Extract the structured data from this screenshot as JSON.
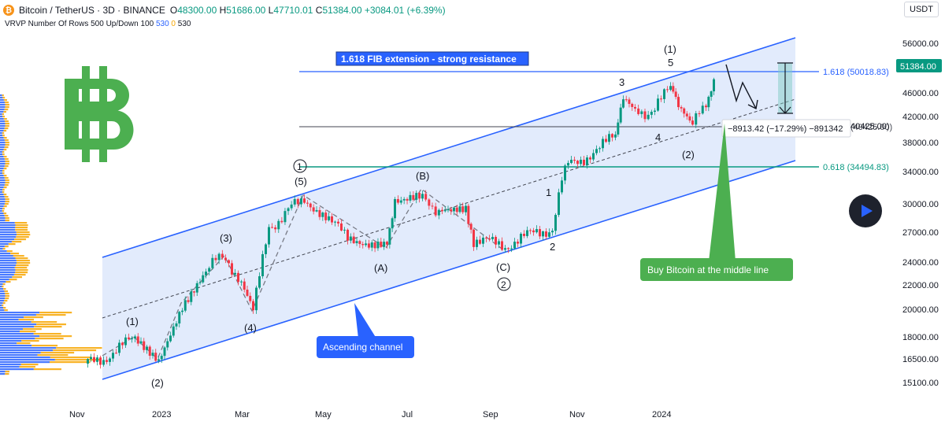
{
  "header": {
    "symbol": "Bitcoin / TetherUS · 3D · BINANCE",
    "logo_glyph": "₿",
    "ohlc": [
      {
        "label": "O",
        "value": "48300.00"
      },
      {
        "label": "H",
        "value": "51686.00"
      },
      {
        "label": "L",
        "value": "47710.01"
      },
      {
        "label": "C",
        "value": "51384.00"
      }
    ],
    "change": "+3084.01 (+6.39%)"
  },
  "indicator": {
    "label": "VRVP Number Of Rows 500 Up/Down 100",
    "up": "530",
    "zero": "0",
    "down": "530"
  },
  "currency_button": "USDT",
  "price_axis": {
    "ticks": [
      "56000.00",
      "51384.00",
      "46000.00",
      "42000.00",
      "40425.00)",
      "38000.00",
      "34000.00",
      "30000.00",
      "27000.00",
      "24000.00",
      "22000.00",
      "20000.00",
      "18000.00",
      "16500.00",
      "15100.00"
    ],
    "current_price": "51384.00"
  },
  "time_axis": [
    "Nov",
    "2023",
    "Mar",
    "May",
    "Jul",
    "Sep",
    "Nov",
    "2024"
  ],
  "annotations": {
    "fib_banner": "1.618 FIB extension - strong resistance",
    "fib_1618": "1.618 (50018.83)",
    "fib_0618": "0.618 (34494.83)",
    "fib_40425": "(40425.00)",
    "measure": "−8913.42 (−17.29%) −891342",
    "channel_label": "Ascending channel",
    "buy_label": "Buy Bitcoin at the middle line"
  },
  "waves": [
    {
      "text": "(1)"
    },
    {
      "text": "(2)"
    },
    {
      "text": "(3)"
    },
    {
      "text": "(4)"
    },
    {
      "text": "(5)"
    },
    {
      "text": "1"
    },
    {
      "text": "(A)"
    },
    {
      "text": "(B)"
    },
    {
      "text": "(C)"
    },
    {
      "text": "2"
    },
    {
      "text": "1"
    },
    {
      "text": "2"
    },
    {
      "text": "3"
    },
    {
      "text": "4"
    },
    {
      "text": "5"
    },
    {
      "text": "(1)"
    },
    {
      "text": "(2)"
    }
  ],
  "colors": {
    "up": "#089981",
    "down": "#f23645",
    "channel": "#2962ff",
    "channel_fill": "#d6e2fb",
    "buy_green": "#4caf50",
    "fib_teal": "#089981",
    "bitcoin_green": "#4caf50",
    "vp_up": "#2962ff",
    "vp_down": "#f7a600"
  },
  "icons": {
    "play": "play-icon",
    "bitcoin_logo": "bitcoin-logo"
  }
}
